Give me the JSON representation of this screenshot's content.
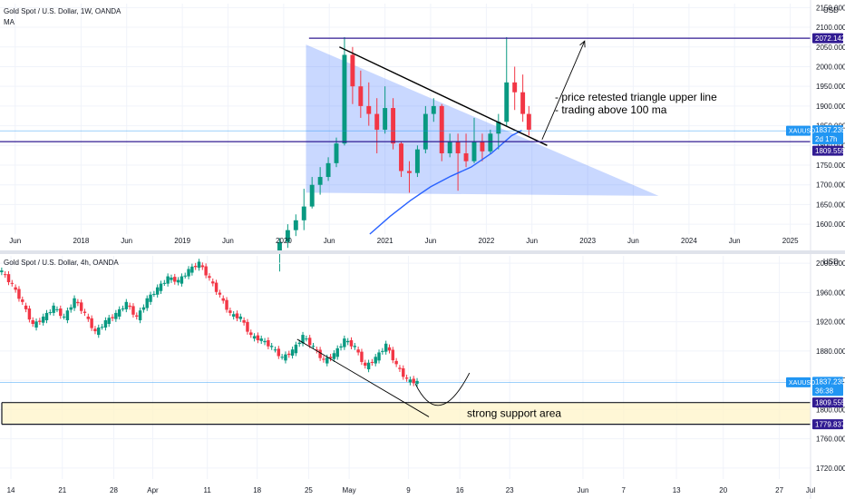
{
  "chart_data": [
    {
      "type": "candlestick",
      "title": "Gold Spot / U.S. Dollar, 1W, OANDA",
      "indicator": "MA",
      "currency": "USD",
      "y_ticks": [
        1600,
        1650,
        1700,
        1750,
        1800,
        1850,
        1900,
        1950,
        2000,
        2050,
        2100,
        2150
      ],
      "y_tick_labels": [
        "1600.000",
        "1650.000",
        "1700.000",
        "1750.000",
        "1800.000",
        "1850.000",
        "1900.000",
        "1950.000",
        "2000.000",
        "2050.000",
        "2100.000",
        "2150.000"
      ],
      "ylim": [
        1575,
        2160
      ],
      "x_labels": [
        "Jun",
        "2018",
        "Jun",
        "2019",
        "Jun",
        "2020",
        "Jun",
        "2021",
        "Jun",
        "2022",
        "Jun",
        "2023",
        "Jun",
        "2024",
        "Jun",
        "2025"
      ],
      "xlim": [
        2017.2,
        2025.2
      ],
      "resistance_level": 2072.142,
      "resistance_label": "2072.142",
      "support_level": 1809.555,
      "support_label": "1809.555",
      "last_price": 1837.235,
      "last_price_label": "1837.235",
      "countdown": "2d 17h",
      "symbol": "XAUUSD",
      "triangle": [
        [
          2020.22,
          2056
        ],
        [
          2020.22,
          1680
        ],
        [
          2023.7,
          1672
        ]
      ],
      "upper_trendline": [
        [
          2020.55,
          2050
        ],
        [
          2022.6,
          1800
        ]
      ],
      "ma100": [
        [
          2020.85,
          1575
        ],
        [
          2021.05,
          1620
        ],
        [
          2021.25,
          1660
        ],
        [
          2021.45,
          1695
        ],
        [
          2021.65,
          1722
        ],
        [
          2021.85,
          1745
        ],
        [
          2022.05,
          1780
        ],
        [
          2022.25,
          1825
        ],
        [
          2022.35,
          1838
        ]
      ],
      "projection_arrow": [
        [
          2022.55,
          1815
        ],
        [
          2022.97,
          2065
        ]
      ],
      "candles": [
        {
          "x": 2019.96,
          "o": 1525,
          "h": 1565,
          "l": 1480,
          "c": 1555
        },
        {
          "x": 2020.04,
          "o": 1555,
          "h": 1600,
          "l": 1540,
          "c": 1585
        },
        {
          "x": 2020.12,
          "o": 1585,
          "h": 1625,
          "l": 1570,
          "c": 1610
        },
        {
          "x": 2020.2,
          "o": 1610,
          "h": 1690,
          "l": 1585,
          "c": 1645
        },
        {
          "x": 2020.28,
          "o": 1645,
          "h": 1720,
          "l": 1640,
          "c": 1700
        },
        {
          "x": 2020.36,
          "o": 1700,
          "h": 1745,
          "l": 1675,
          "c": 1720
        },
        {
          "x": 2020.44,
          "o": 1720,
          "h": 1770,
          "l": 1710,
          "c": 1755
        },
        {
          "x": 2020.52,
          "o": 1755,
          "h": 1820,
          "l": 1745,
          "c": 1805
        },
        {
          "x": 2020.6,
          "o": 1805,
          "h": 2075,
          "l": 1800,
          "c": 2030
        },
        {
          "x": 2020.68,
          "o": 2030,
          "h": 2050,
          "l": 1905,
          "c": 1950
        },
        {
          "x": 2020.76,
          "o": 1950,
          "h": 1990,
          "l": 1870,
          "c": 1900
        },
        {
          "x": 2020.84,
          "o": 1900,
          "h": 1960,
          "l": 1850,
          "c": 1880
        },
        {
          "x": 2020.92,
          "o": 1880,
          "h": 1920,
          "l": 1780,
          "c": 1840
        },
        {
          "x": 2021.0,
          "o": 1840,
          "h": 1950,
          "l": 1830,
          "c": 1895
        },
        {
          "x": 2021.08,
          "o": 1895,
          "h": 1920,
          "l": 1790,
          "c": 1805
        },
        {
          "x": 2021.16,
          "o": 1805,
          "h": 1810,
          "l": 1720,
          "c": 1735
        },
        {
          "x": 2021.24,
          "o": 1735,
          "h": 1760,
          "l": 1680,
          "c": 1730
        },
        {
          "x": 2021.32,
          "o": 1730,
          "h": 1800,
          "l": 1720,
          "c": 1790
        },
        {
          "x": 2021.4,
          "o": 1790,
          "h": 1900,
          "l": 1780,
          "c": 1880
        },
        {
          "x": 2021.48,
          "o": 1880,
          "h": 1920,
          "l": 1860,
          "c": 1900
        },
        {
          "x": 2021.56,
          "o": 1900,
          "h": 1905,
          "l": 1760,
          "c": 1780
        },
        {
          "x": 2021.64,
          "o": 1780,
          "h": 1830,
          "l": 1770,
          "c": 1810
        },
        {
          "x": 2021.72,
          "o": 1810,
          "h": 1830,
          "l": 1685,
          "c": 1780
        },
        {
          "x": 2021.8,
          "o": 1780,
          "h": 1830,
          "l": 1745,
          "c": 1760
        },
        {
          "x": 2021.88,
          "o": 1760,
          "h": 1870,
          "l": 1755,
          "c": 1810
        },
        {
          "x": 2021.96,
          "o": 1810,
          "h": 1830,
          "l": 1760,
          "c": 1785
        },
        {
          "x": 2022.04,
          "o": 1785,
          "h": 1840,
          "l": 1780,
          "c": 1830
        },
        {
          "x": 2022.12,
          "o": 1830,
          "h": 1880,
          "l": 1790,
          "c": 1860
        },
        {
          "x": 2022.2,
          "o": 1860,
          "h": 2075,
          "l": 1850,
          "c": 1960
        },
        {
          "x": 2022.28,
          "o": 1960,
          "h": 2000,
          "l": 1890,
          "c": 1935
        },
        {
          "x": 2022.36,
          "o": 1935,
          "h": 1980,
          "l": 1860,
          "c": 1880
        },
        {
          "x": 2022.42,
          "o": 1880,
          "h": 1900,
          "l": 1825,
          "c": 1840
        }
      ],
      "annotations": [
        "- price retested triangle upper line",
        "- trading above 100 ma"
      ]
    },
    {
      "type": "candlestick",
      "title": "Gold Spot / U.S. Dollar, 4h, OANDA",
      "currency": "USD",
      "y_ticks": [
        1720,
        1760,
        1800,
        1840,
        1880,
        1920,
        1960,
        2000
      ],
      "y_tick_labels": [
        "1720.000",
        "1760.000",
        "1800.000",
        "1840.000",
        "1880.000",
        "1920.000",
        "1960.000",
        "2000.000"
      ],
      "ylim": [
        1705,
        2010
      ],
      "x_labels": [
        "14",
        "21",
        "28",
        "Apr",
        "11",
        "18",
        "25",
        "May",
        "9",
        "16",
        "23",
        "Jun",
        "7",
        "13",
        "20",
        "27",
        "Jul"
      ],
      "xlim": [
        0,
        24
      ],
      "support_zone": [
        1779.837,
        1809.555
      ],
      "support_zone_labels": [
        "1809.555",
        "1779.837"
      ],
      "last_price": 1837.235,
      "last_price_label": "1837.235",
      "countdown": "36:38",
      "symbol": "XAUUSD",
      "descending_line": [
        [
          8.8,
          1896
        ],
        [
          12.7,
          1790
        ]
      ],
      "projection_curve": [
        [
          12.3,
          1835
        ],
        [
          13.0,
          1787
        ],
        [
          13.9,
          1850
        ]
      ],
      "zone_label": "strong support area",
      "closes": [
        1988,
        1970,
        1945,
        1915,
        1925,
        1940,
        1925,
        1950,
        1930,
        1905,
        1920,
        1930,
        1945,
        1925,
        1950,
        1965,
        1980,
        1975,
        1990,
        2000,
        1978,
        1955,
        1930,
        1925,
        1900,
        1895,
        1885,
        1870,
        1880,
        1900,
        1885,
        1866,
        1875,
        1895,
        1885,
        1858,
        1870,
        1888,
        1860,
        1840,
        1837
      ]
    }
  ]
}
